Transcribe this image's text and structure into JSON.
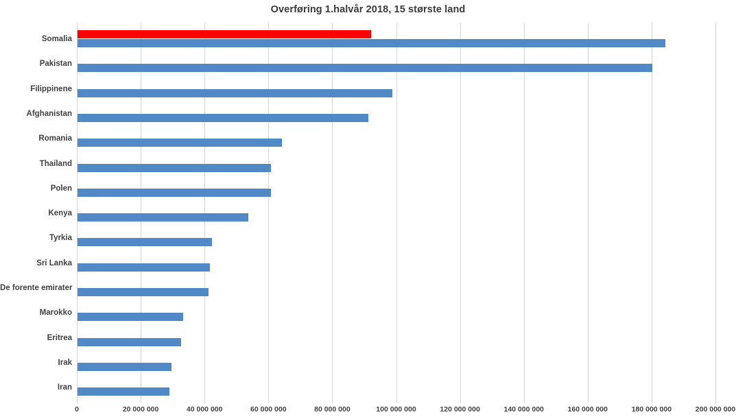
{
  "chart": {
    "title": "Overføring 1.halvår 2018, 15 største land"
  },
  "chart_data": {
    "type": "bar",
    "orientation": "horizontal",
    "title": "Overføring 1.halvår 2018, 15 største land",
    "categories": [
      "Somalia",
      "Pakistan",
      "Filippinene",
      "Afghanistan",
      "Romania",
      "Thailand",
      "Polen",
      "Kenya",
      "Tyrkia",
      "Sri Lanka",
      "De forente emirater",
      "Marokko",
      "Eritrea",
      "Irak",
      "Iran"
    ],
    "series": [
      {
        "name": "red",
        "color": "#fe0000",
        "values": [
          92000000,
          0,
          0,
          0,
          0,
          0,
          0,
          0,
          0,
          0,
          0,
          0,
          0,
          0,
          0
        ]
      },
      {
        "name": "blue",
        "color": "#5189c6",
        "values": [
          184000000,
          180000000,
          98500000,
          91000000,
          64000000,
          60500000,
          60500000,
          53500000,
          42000000,
          41500000,
          41000000,
          33000000,
          32500000,
          29500000,
          28700000
        ]
      }
    ],
    "xlim": [
      0,
      200000000
    ],
    "x_tick_interval": 20000000,
    "x_tick_labels": [
      "0",
      "20 000 000",
      "40 000 000",
      "60 000 000",
      "80 000 000",
      "100 000 000",
      "120 000 000",
      "140 000 000",
      "160 000 000",
      "180 000 000",
      "200 000 000"
    ],
    "grid": "vertical",
    "legend": "none",
    "colors": {
      "gridline": "#d6d6d6",
      "axis_text": "#404040",
      "title_text": "#3b3b3b"
    }
  }
}
